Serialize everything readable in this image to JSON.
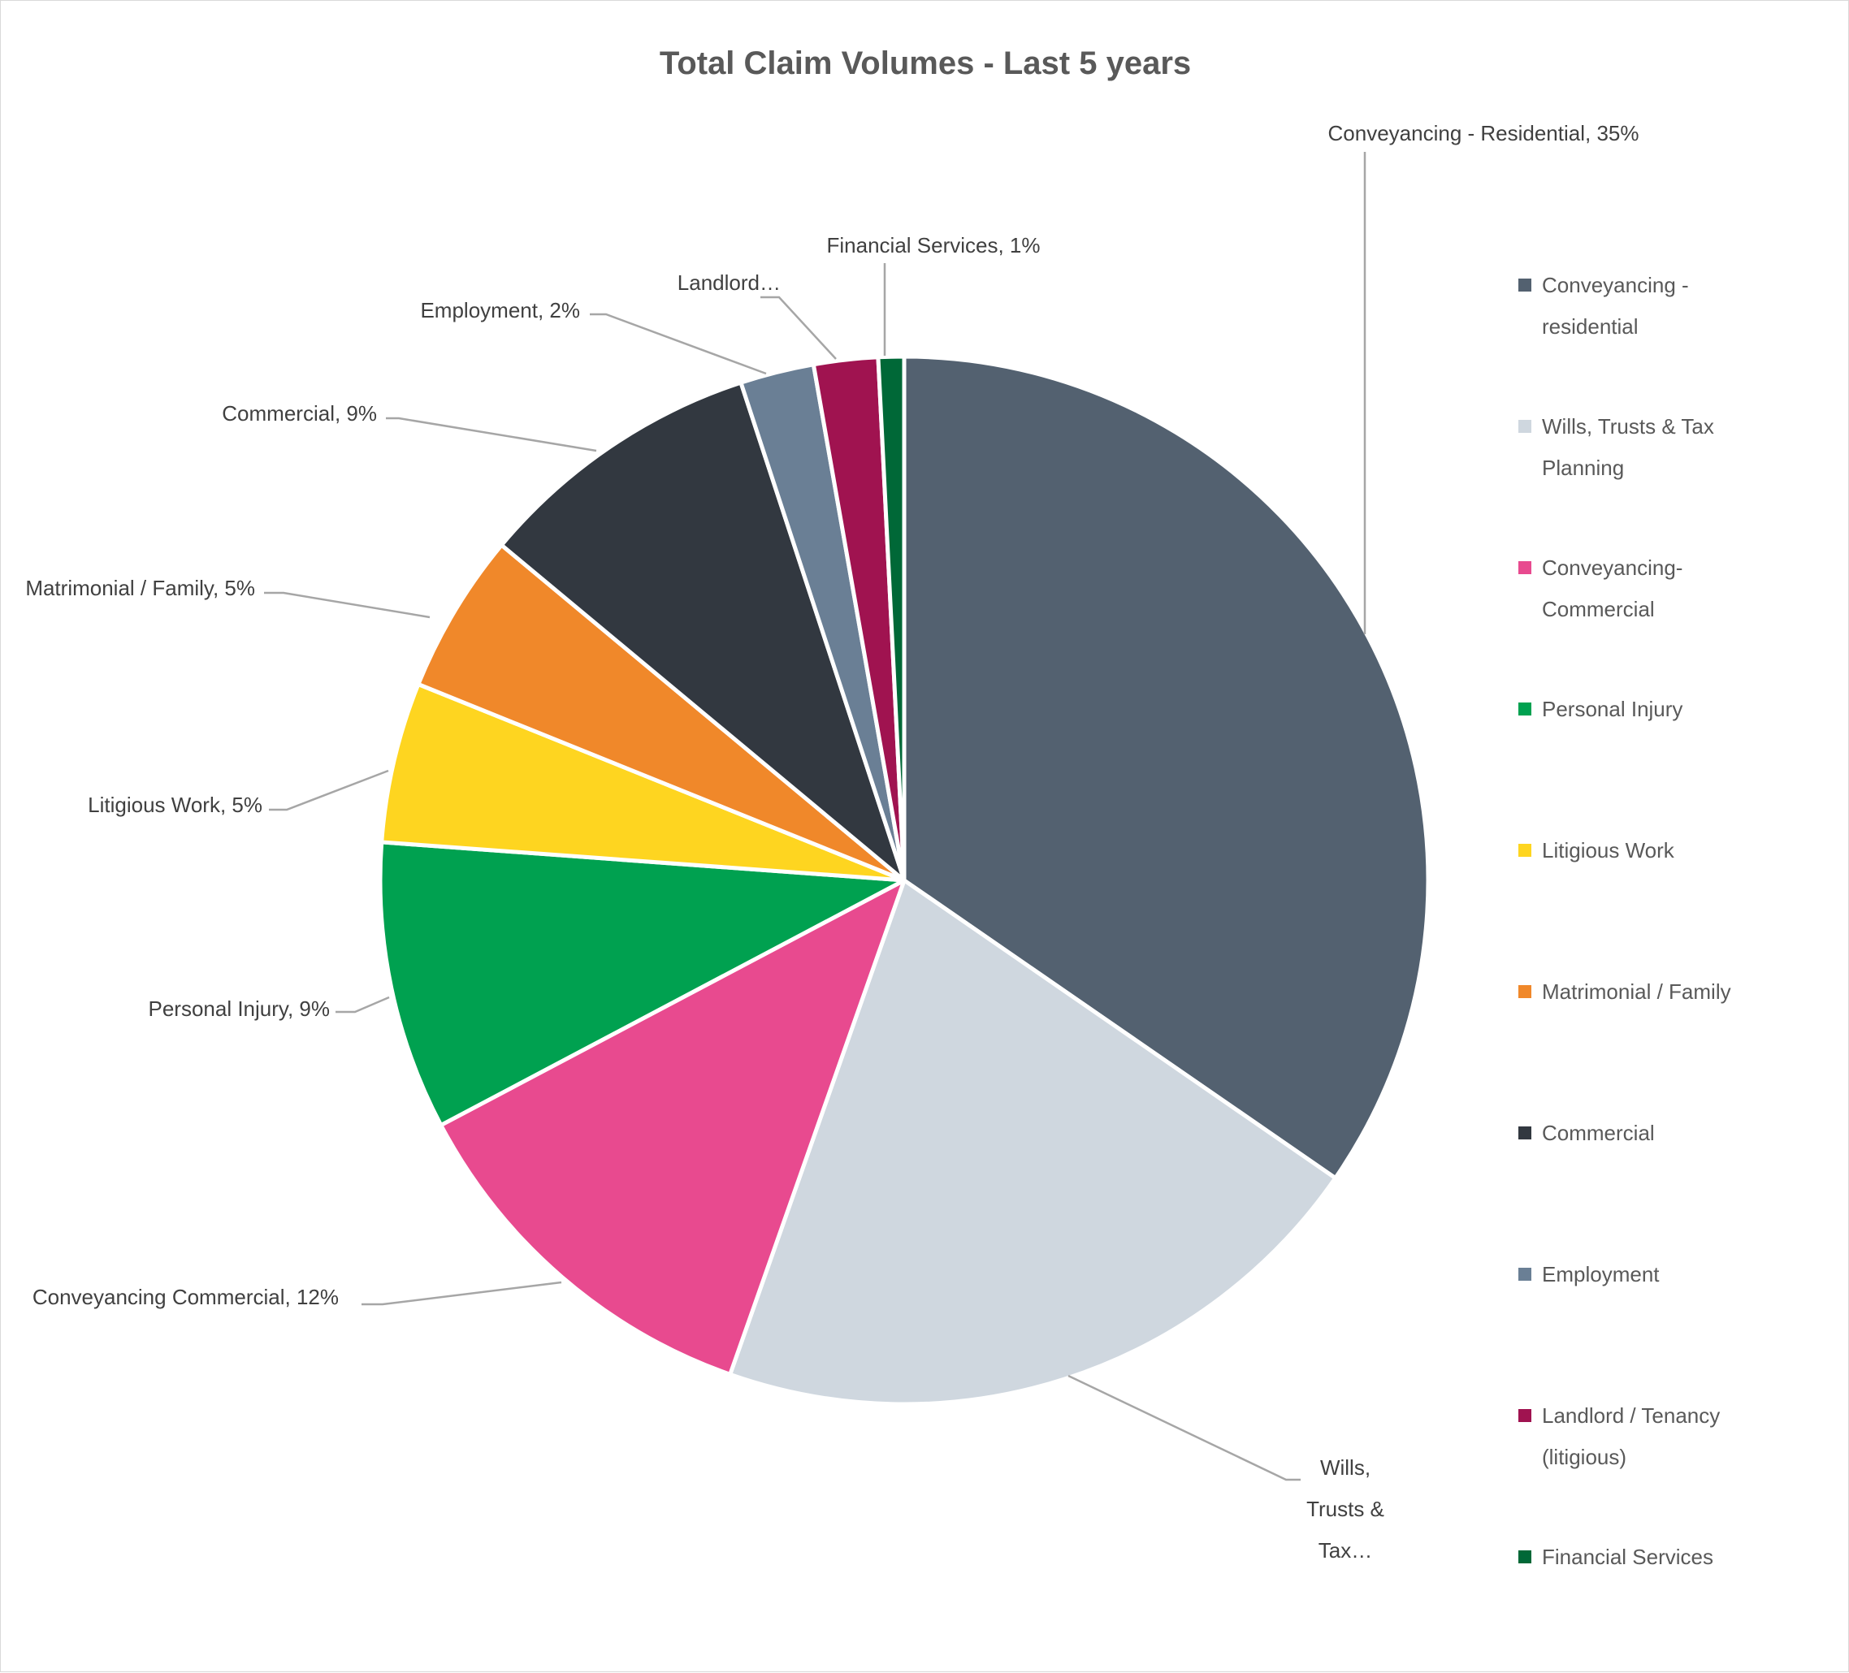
{
  "chart_data": {
    "type": "pie",
    "title": "Total Claim Volumes  - Last 5 years",
    "slices": [
      {
        "name": "Conveyancing - residential",
        "value": 35,
        "color": "#536170",
        "label": [
          "Conveyancing - Residential, 35%"
        ]
      },
      {
        "name": "Wills, Trusts & Tax Planning",
        "value": 21,
        "color": "#cfd7df",
        "label": [
          "Wills,",
          "Trusts &",
          "Tax…"
        ]
      },
      {
        "name": "Conveyancing-Commercial",
        "value": 12,
        "color": "#e84a8f",
        "label": [
          "Conveyancing Commercial, 12%"
        ]
      },
      {
        "name": "Personal Injury",
        "value": 9,
        "color": "#00a150",
        "label": [
          "Personal Injury, 9%"
        ]
      },
      {
        "name": "Litigious Work",
        "value": 5,
        "color": "#fed520",
        "label": [
          "Litigious Work, 5%"
        ]
      },
      {
        "name": "Matrimonial / Family",
        "value": 5,
        "color": "#f0882a",
        "label": [
          "Matrimonial / Family, 5%"
        ]
      },
      {
        "name": "Commercial",
        "value": 9,
        "color": "#323840",
        "label": [
          "Commercial, 9%"
        ]
      },
      {
        "name": "Employment",
        "value": 2.3,
        "color": "#6a7f95",
        "label": [
          "Employment, 2%"
        ]
      },
      {
        "name": "Landlord / Tenancy (litigious)",
        "value": 2,
        "color": "#a01350",
        "label": [
          "Landlord…"
        ]
      },
      {
        "name": "Financial Services",
        "value": 0.8,
        "color": "#006837",
        "label": [
          "Financial Services, 1%"
        ]
      }
    ],
    "legend": {
      "position": "right",
      "entries": [
        [
          "Conveyancing -",
          "residential"
        ],
        [
          "Wills, Trusts & Tax",
          "Planning"
        ],
        [
          "Conveyancing-",
          "Commercial"
        ],
        [
          "Personal Injury"
        ],
        [
          "Litigious Work"
        ],
        [
          "Matrimonial / Family"
        ],
        [
          "Commercial"
        ],
        [
          "Employment"
        ],
        [
          "Landlord / Tenancy",
          "(litigious)"
        ],
        [
          "Financial Services"
        ]
      ]
    },
    "leader_line_color": "#a6a6a6",
    "slice_border_color": "#ffffff"
  }
}
